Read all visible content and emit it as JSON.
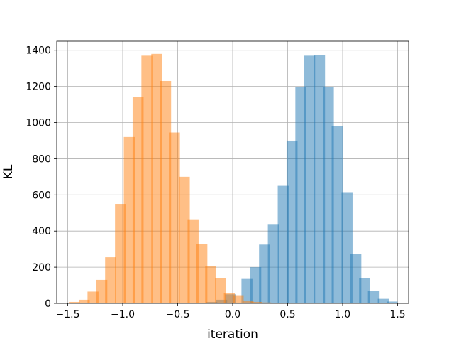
{
  "chart_data": {
    "type": "bar",
    "title": "",
    "xlabel": "iteration",
    "ylabel": "KL",
    "xlim": [
      -1.6,
      1.6
    ],
    "ylim": [
      0,
      1450
    ],
    "grid": true,
    "bin_width": 0.1,
    "x_ticks": [
      -1.5,
      -1.0,
      -0.5,
      0.0,
      0.5,
      1.0,
      1.5
    ],
    "x_tick_labels": [
      "−1.5",
      "−1.0",
      "−0.5",
      "0.0",
      "0.5",
      "1.0",
      "1.5"
    ],
    "y_ticks": [
      0,
      200,
      400,
      600,
      800,
      1000,
      1200,
      1400
    ],
    "y_tick_labels": [
      "0",
      "200",
      "400",
      "600",
      "800",
      "1000",
      "1200",
      "1400"
    ],
    "series": [
      {
        "color": "#1f77b4",
        "opacity": 0.5,
        "bins": [
          {
            "x0": -0.32,
            "count": 3
          },
          {
            "x0": -0.24,
            "count": 8
          },
          {
            "x0": -0.15,
            "count": 20
          },
          {
            "x0": -0.07,
            "count": 50
          },
          {
            "x0": 0.08,
            "count": 135
          },
          {
            "x0": 0.16,
            "count": 200
          },
          {
            "x0": 0.24,
            "count": 325
          },
          {
            "x0": 0.32,
            "count": 435
          },
          {
            "x0": 0.41,
            "count": 650
          },
          {
            "x0": 0.49,
            "count": 900
          },
          {
            "x0": 0.57,
            "count": 1195
          },
          {
            "x0": 0.65,
            "count": 1370
          },
          {
            "x0": 0.74,
            "count": 1375
          },
          {
            "x0": 0.82,
            "count": 1195
          },
          {
            "x0": 0.9,
            "count": 980
          },
          {
            "x0": 0.99,
            "count": 615
          },
          {
            "x0": 1.07,
            "count": 275
          },
          {
            "x0": 1.15,
            "count": 140
          },
          {
            "x0": 1.23,
            "count": 68
          },
          {
            "x0": 1.32,
            "count": 25
          },
          {
            "x0": 1.4,
            "count": 10
          }
        ]
      },
      {
        "color": "#ff7f0e",
        "opacity": 0.5,
        "bins": [
          {
            "x0": -1.49,
            "count": 8
          },
          {
            "x0": -1.4,
            "count": 20
          },
          {
            "x0": -1.32,
            "count": 65
          },
          {
            "x0": -1.24,
            "count": 130
          },
          {
            "x0": -1.16,
            "count": 255
          },
          {
            "x0": -1.07,
            "count": 550
          },
          {
            "x0": -0.99,
            "count": 920
          },
          {
            "x0": -0.91,
            "count": 1140
          },
          {
            "x0": -0.83,
            "count": 1370
          },
          {
            "x0": -0.74,
            "count": 1380
          },
          {
            "x0": -0.66,
            "count": 1230
          },
          {
            "x0": -0.58,
            "count": 945
          },
          {
            "x0": -0.49,
            "count": 700
          },
          {
            "x0": -0.41,
            "count": 465
          },
          {
            "x0": -0.33,
            "count": 330
          },
          {
            "x0": -0.25,
            "count": 205
          },
          {
            "x0": -0.16,
            "count": 140
          },
          {
            "x0": -0.08,
            "count": 55
          },
          {
            "x0": 0.0,
            "count": 45
          },
          {
            "x0": 0.09,
            "count": 12
          },
          {
            "x0": 0.17,
            "count": 8
          },
          {
            "x0": 0.25,
            "count": 5
          }
        ]
      }
    ]
  }
}
